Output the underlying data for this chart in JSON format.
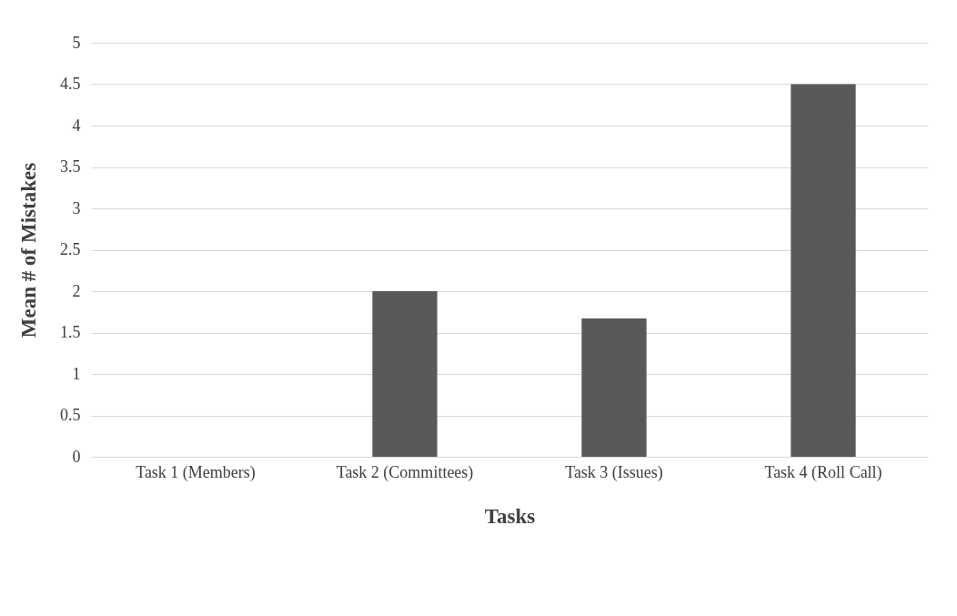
{
  "chart_data": {
    "type": "bar",
    "xlabel": "Tasks",
    "ylabel": "Mean # of Mistakes",
    "categories": [
      "Task 1 (Members)",
      "Task 2 (Committees)",
      "Task 3 (Issues)",
      "Task 4 (Roll Call)"
    ],
    "values": [
      0,
      2,
      1.67,
      4.5
    ],
    "color": "#595959",
    "ylim": [
      0,
      5
    ],
    "yticks": [
      0,
      0.5,
      1,
      1.5,
      2,
      2.5,
      3,
      3.5,
      4,
      4.5,
      5
    ],
    "grid": "y"
  }
}
